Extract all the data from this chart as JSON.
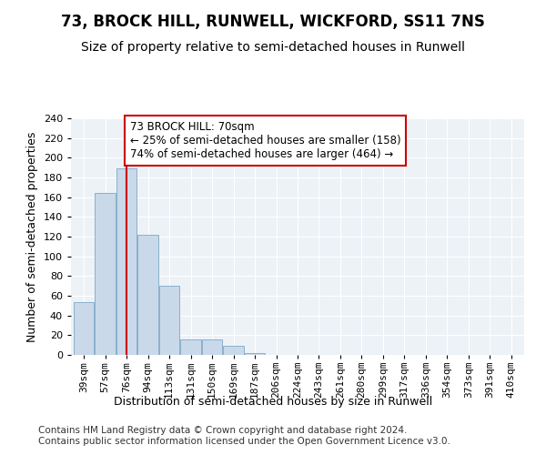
{
  "title": "73, BROCK HILL, RUNWELL, WICKFORD, SS11 7NS",
  "subtitle": "Size of property relative to semi-detached houses in Runwell",
  "xlabel": "Distribution of semi-detached houses by size in Runwell",
  "ylabel": "Number of semi-detached properties",
  "categories": [
    "39sqm",
    "57sqm",
    "76sqm",
    "94sqm",
    "113sqm",
    "131sqm",
    "150sqm",
    "169sqm",
    "187sqm",
    "206sqm",
    "224sqm",
    "243sqm",
    "261sqm",
    "280sqm",
    "299sqm",
    "317sqm",
    "336sqm",
    "354sqm",
    "373sqm",
    "391sqm",
    "410sqm"
  ],
  "values": [
    54,
    164,
    189,
    122,
    70,
    16,
    16,
    9,
    2,
    0,
    0,
    0,
    0,
    0,
    0,
    0,
    0,
    0,
    0,
    0,
    0
  ],
  "bar_color": "#c9d9e9",
  "bar_edge_color": "#8ab0cc",
  "vline_x": 2,
  "vline_color": "#cc0000",
  "annotation_text": "73 BROCK HILL: 70sqm\n← 25% of semi-detached houses are smaller (158)\n74% of semi-detached houses are larger (464) →",
  "annotation_box_color": "#ffffff",
  "annotation_box_edge": "#cc0000",
  "ylim": [
    0,
    240
  ],
  "yticks": [
    0,
    20,
    40,
    60,
    80,
    100,
    120,
    140,
    160,
    180,
    200,
    220,
    240
  ],
  "footer_line1": "Contains HM Land Registry data © Crown copyright and database right 2024.",
  "footer_line2": "Contains public sector information licensed under the Open Government Licence v3.0.",
  "title_fontsize": 12,
  "subtitle_fontsize": 10,
  "axis_label_fontsize": 9,
  "tick_fontsize": 8,
  "footer_fontsize": 7.5,
  "bg_color": "#edf2f7",
  "annotation_fontsize": 8.5
}
